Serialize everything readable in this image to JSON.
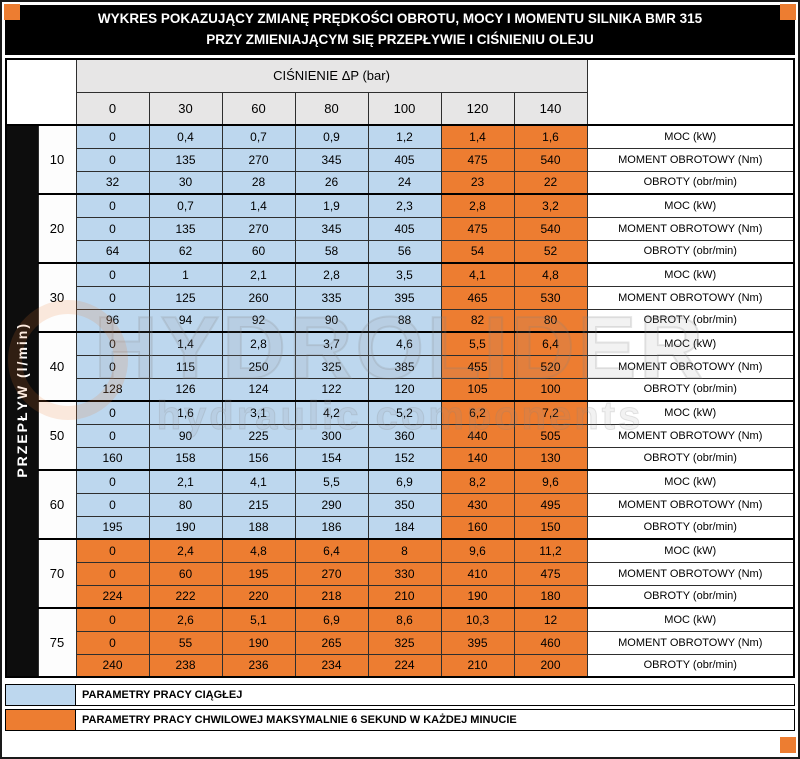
{
  "title": {
    "line1": "WYKRES POKAZUJĄCY ZMIANĘ PRĘDKOŚCI OBROTU, MOCY I MOMENTU SILNIKA BMR 315",
    "line2": "PRZY ZMIENIAJĄCYM SIĘ PRZEPŁYWIE I CIŚNIENIU OLEJU"
  },
  "colors": {
    "continuous_blue": "#bdd7ee",
    "momentary_orange": "#ed7d31",
    "header_gray": "#e7e6e6",
    "title_black": "#000000"
  },
  "table": {
    "pressure_header": "CIŚNIENIE ΔP (bar)",
    "pressure_values": [
      "0",
      "30",
      "60",
      "80",
      "100",
      "120",
      "140"
    ],
    "flow_axis_label": "PRZEPŁYW (l/min)",
    "row_labels": [
      "MOC (kW)",
      "MOMENT OBROTOWY (Nm)",
      "OBROTY (obr/min)"
    ],
    "groups": [
      {
        "flow": "10",
        "orange_from": 5,
        "rows": [
          [
            "0",
            "0,4",
            "0,7",
            "0,9",
            "1,2",
            "1,4",
            "1,6"
          ],
          [
            "0",
            "135",
            "270",
            "345",
            "405",
            "475",
            "540"
          ],
          [
            "32",
            "30",
            "28",
            "26",
            "24",
            "23",
            "22"
          ]
        ]
      },
      {
        "flow": "20",
        "orange_from": 5,
        "rows": [
          [
            "0",
            "0,7",
            "1,4",
            "1,9",
            "2,3",
            "2,8",
            "3,2"
          ],
          [
            "0",
            "135",
            "270",
            "345",
            "405",
            "475",
            "540"
          ],
          [
            "64",
            "62",
            "60",
            "58",
            "56",
            "54",
            "52"
          ]
        ]
      },
      {
        "flow": "30",
        "orange_from": 5,
        "rows": [
          [
            "0",
            "1",
            "2,1",
            "2,8",
            "3,5",
            "4,1",
            "4,8"
          ],
          [
            "0",
            "125",
            "260",
            "335",
            "395",
            "465",
            "530"
          ],
          [
            "96",
            "94",
            "92",
            "90",
            "88",
            "82",
            "80"
          ]
        ]
      },
      {
        "flow": "40",
        "orange_from": 5,
        "rows": [
          [
            "0",
            "1,4",
            "2,8",
            "3,7",
            "4,6",
            "5,5",
            "6,4"
          ],
          [
            "0",
            "115",
            "250",
            "325",
            "385",
            "455",
            "520"
          ],
          [
            "128",
            "126",
            "124",
            "122",
            "120",
            "105",
            "100"
          ]
        ]
      },
      {
        "flow": "50",
        "orange_from": 5,
        "rows": [
          [
            "0",
            "1,6",
            "3,1",
            "4,2",
            "5,2",
            "6,2",
            "7,2"
          ],
          [
            "0",
            "90",
            "225",
            "300",
            "360",
            "440",
            "505"
          ],
          [
            "160",
            "158",
            "156",
            "154",
            "152",
            "140",
            "130"
          ]
        ]
      },
      {
        "flow": "60",
        "orange_from": 5,
        "rows": [
          [
            "0",
            "2,1",
            "4,1",
            "5,5",
            "6,9",
            "8,2",
            "9,6"
          ],
          [
            "0",
            "80",
            "215",
            "290",
            "350",
            "430",
            "495"
          ],
          [
            "195",
            "190",
            "188",
            "186",
            "184",
            "160",
            "150"
          ]
        ]
      },
      {
        "flow": "70",
        "orange_from": 0,
        "rows": [
          [
            "0",
            "2,4",
            "4,8",
            "6,4",
            "8",
            "9,6",
            "11,2"
          ],
          [
            "0",
            "60",
            "195",
            "270",
            "330",
            "410",
            "475"
          ],
          [
            "224",
            "222",
            "220",
            "218",
            "210",
            "190",
            "180"
          ]
        ]
      },
      {
        "flow": "75",
        "orange_from": 0,
        "rows": [
          [
            "0",
            "2,6",
            "5,1",
            "6,9",
            "8,6",
            "10,3",
            "12"
          ],
          [
            "0",
            "55",
            "190",
            "265",
            "325",
            "395",
            "460"
          ],
          [
            "240",
            "238",
            "236",
            "234",
            "224",
            "210",
            "200"
          ]
        ]
      }
    ]
  },
  "legend": [
    {
      "label": "PARAMETRY PRACY CIĄGŁEJ",
      "color": "#bdd7ee"
    },
    {
      "label": "PARAMETRY PRACY CHWILOWEJ MAKSYMALNIE 6 SEKUND W KAŻDEJ MINUCIE",
      "color": "#ed7d31"
    }
  ],
  "watermark": {
    "line1": "HYDROLIDER",
    "line2": "hydraulic components"
  }
}
